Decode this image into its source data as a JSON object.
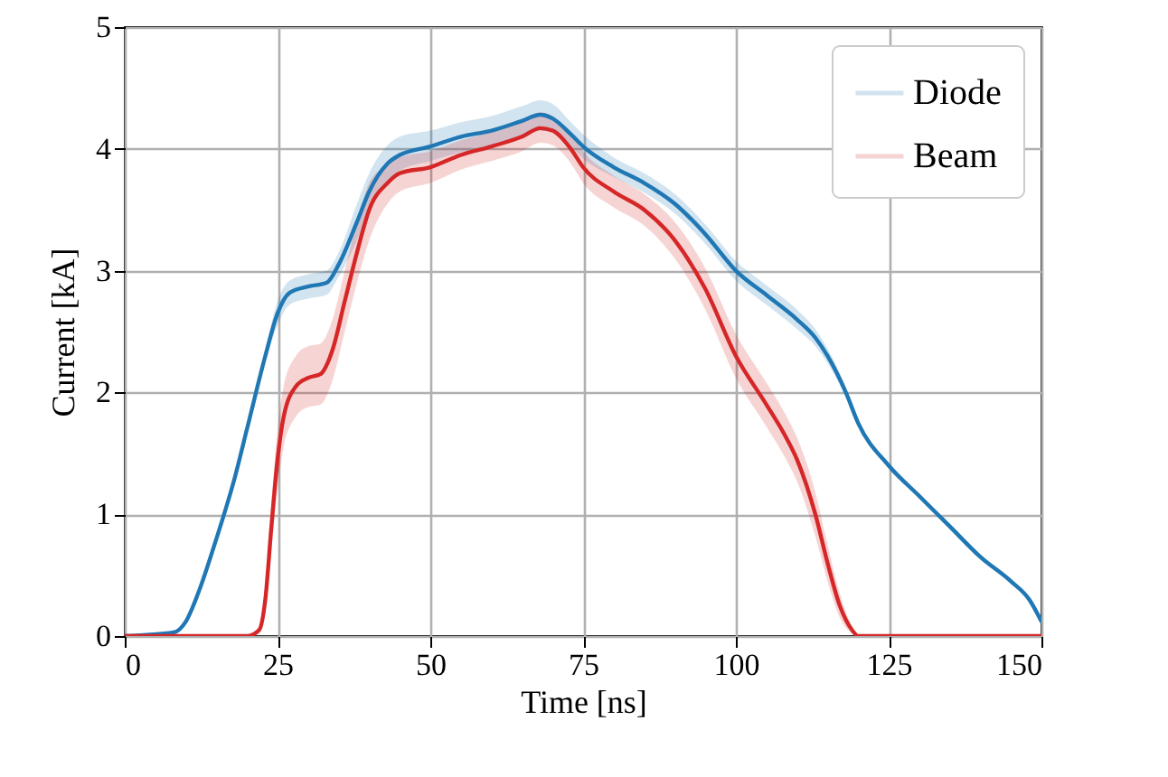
{
  "chart_data": {
    "type": "line",
    "xlabel": "Time [ns]",
    "ylabel": "Current [kA]",
    "xlim": [
      0,
      150
    ],
    "ylim": [
      0,
      5
    ],
    "xticks": [
      0,
      25,
      50,
      75,
      100,
      125,
      150
    ],
    "yticks": [
      0,
      1,
      2,
      3,
      4,
      5
    ],
    "grid": true,
    "legend": "top right",
    "line_style": "solid",
    "marker": "none",
    "series": [
      {
        "name": "Diode",
        "color": "#1f77b4",
        "x": [
          0,
          8,
          10,
          12,
          15,
          18,
          20,
          23,
          25,
          27,
          30,
          33,
          35,
          38,
          40,
          43,
          45,
          50,
          55,
          60,
          65,
          68,
          70,
          73,
          75,
          80,
          85,
          90,
          95,
          100,
          105,
          110,
          113,
          115,
          118,
          120,
          125,
          130,
          135,
          140,
          145,
          148,
          150
        ],
        "values": [
          0,
          0.03,
          0.12,
          0.35,
          0.8,
          1.3,
          1.7,
          2.3,
          2.65,
          2.82,
          2.87,
          2.9,
          3.05,
          3.4,
          3.65,
          3.88,
          3.95,
          4.02,
          4.1,
          4.15,
          4.23,
          4.28,
          4.25,
          4.12,
          4.02,
          3.85,
          3.72,
          3.55,
          3.3,
          3.0,
          2.8,
          2.6,
          2.45,
          2.3,
          2.0,
          1.75,
          1.4,
          1.15,
          0.9,
          0.65,
          0.45,
          0.3,
          0.12
        ],
        "lower": [
          0,
          0.03,
          0.12,
          0.35,
          0.8,
          1.3,
          1.7,
          2.25,
          2.55,
          2.72,
          2.77,
          2.8,
          2.95,
          3.25,
          3.5,
          3.73,
          3.82,
          3.9,
          3.97,
          4.02,
          4.1,
          4.15,
          4.13,
          4.02,
          3.92,
          3.77,
          3.64,
          3.47,
          3.22,
          2.92,
          2.72,
          2.52,
          2.38,
          2.24,
          1.96,
          1.72,
          1.38,
          1.13,
          0.88,
          0.63,
          0.43,
          0.28,
          0.1
        ],
        "upper": [
          0,
          0.03,
          0.12,
          0.35,
          0.8,
          1.3,
          1.7,
          2.35,
          2.75,
          2.92,
          2.97,
          3.0,
          3.15,
          3.55,
          3.8,
          4.03,
          4.1,
          4.15,
          4.22,
          4.27,
          4.35,
          4.4,
          4.37,
          4.22,
          4.12,
          3.93,
          3.8,
          3.63,
          3.38,
          3.08,
          2.88,
          2.68,
          2.52,
          2.36,
          2.04,
          1.78,
          1.42,
          1.17,
          0.92,
          0.67,
          0.47,
          0.32,
          0.14
        ]
      },
      {
        "name": "Beam",
        "color": "#d62728",
        "x": [
          0,
          20,
          22,
          23,
          24,
          25,
          26,
          28,
          30,
          32,
          34,
          36,
          38,
          40,
          43,
          45,
          50,
          55,
          60,
          65,
          68,
          70,
          73,
          75,
          80,
          85,
          90,
          95,
          100,
          105,
          108,
          110,
          113,
          115,
          117,
          119,
          120,
          150
        ],
        "values": [
          0,
          0,
          0.05,
          0.3,
          0.9,
          1.45,
          1.8,
          2.05,
          2.12,
          2.15,
          2.35,
          2.75,
          3.15,
          3.5,
          3.72,
          3.8,
          3.85,
          3.95,
          4.02,
          4.1,
          4.17,
          4.15,
          4.0,
          3.85,
          3.65,
          3.5,
          3.25,
          2.85,
          2.3,
          1.9,
          1.65,
          1.45,
          1.0,
          0.6,
          0.25,
          0.05,
          0,
          0
        ],
        "lower": [
          0,
          0,
          0.02,
          0.2,
          0.7,
          1.2,
          1.55,
          1.8,
          1.88,
          1.9,
          2.1,
          2.5,
          2.9,
          3.25,
          3.55,
          3.65,
          3.72,
          3.83,
          3.9,
          3.98,
          4.05,
          4.03,
          3.88,
          3.72,
          3.52,
          3.37,
          3.1,
          2.68,
          2.12,
          1.72,
          1.47,
          1.27,
          0.82,
          0.45,
          0.15,
          0.02,
          0,
          0
        ],
        "upper": [
          0,
          0,
          0.08,
          0.4,
          1.1,
          1.7,
          2.05,
          2.3,
          2.38,
          2.4,
          2.6,
          3.0,
          3.4,
          3.72,
          3.87,
          3.93,
          3.98,
          4.07,
          4.14,
          4.22,
          4.3,
          4.27,
          4.12,
          3.98,
          3.78,
          3.63,
          3.4,
          3.02,
          2.48,
          2.08,
          1.83,
          1.63,
          1.18,
          0.75,
          0.35,
          0.08,
          0,
          0
        ]
      }
    ]
  }
}
